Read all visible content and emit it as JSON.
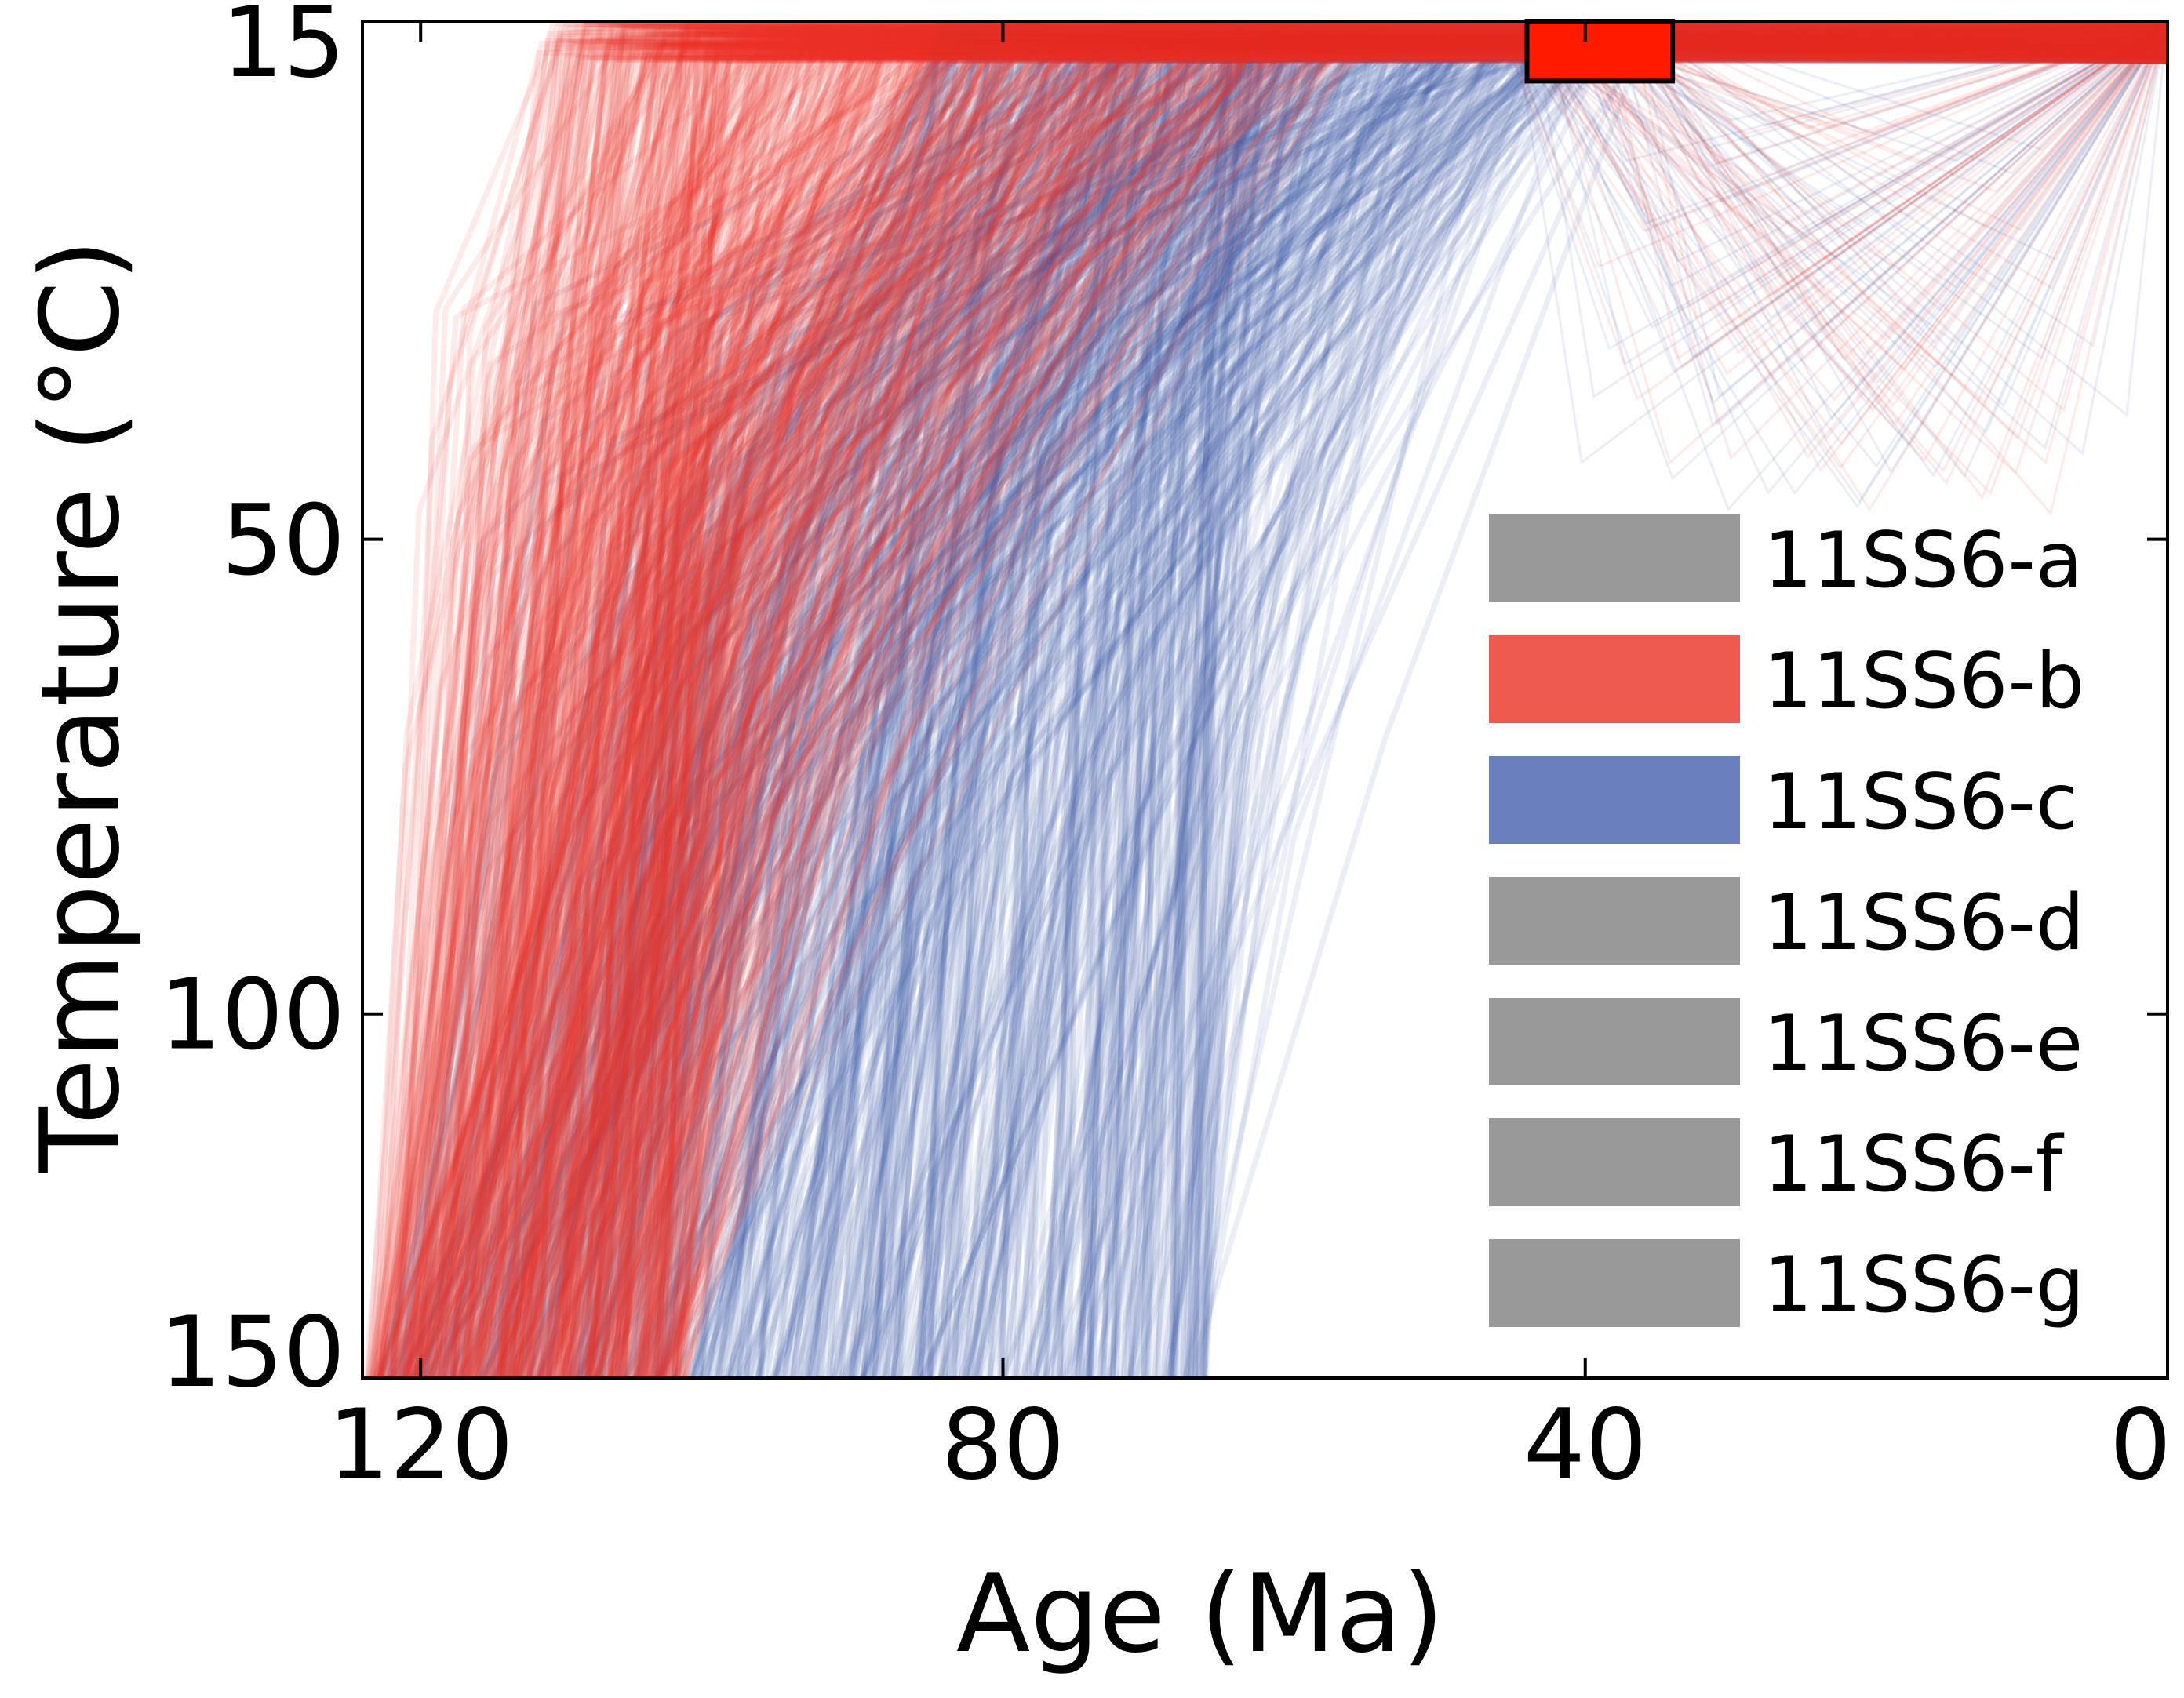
{
  "chart_data": {
    "type": "line",
    "title": "",
    "xlabel": "Age (Ma)",
    "ylabel": "Temperature (°C)",
    "xlim": [
      124,
      0
    ],
    "ylim": [
      15,
      150
    ],
    "x_ticks": [
      120,
      80,
      40,
      0
    ],
    "x_tick_labels": [
      "120",
      "80",
      "40",
      "0"
    ],
    "y_ticks": [
      15,
      50,
      100,
      150
    ],
    "y_tick_labels": [
      "15",
      "50",
      "100",
      "150"
    ],
    "y_scale": "sqrt",
    "grid": false,
    "constraint_box": {
      "age_min": 34,
      "age_max": 44,
      "temp_min": 15,
      "temp_max": 18,
      "color": "#ff1a00"
    },
    "series": [
      {
        "name": "11SS6-a",
        "color": "#999999",
        "paths": 0,
        "start_age_range": [
          0,
          0
        ],
        "reach_surface_age_range": [
          0,
          0
        ]
      },
      {
        "name": "11SS6-b",
        "color": "#e83228",
        "paths": 650,
        "start_age_range": [
          102,
          124
        ],
        "reach_surface_age_range": [
          55,
          112
        ]
      },
      {
        "name": "11SS6-c",
        "color": "#3c55a5",
        "paths": 650,
        "start_age_range": [
          66,
          124
        ],
        "reach_surface_age_range": [
          36,
          85
        ]
      },
      {
        "name": "11SS6-d",
        "color": "#999999",
        "paths": 0,
        "start_age_range": [
          0,
          0
        ],
        "reach_surface_age_range": [
          0,
          0
        ]
      },
      {
        "name": "11SS6-e",
        "color": "#999999",
        "paths": 0,
        "start_age_range": [
          0,
          0
        ],
        "reach_surface_age_range": [
          0,
          0
        ]
      },
      {
        "name": "11SS6-f",
        "color": "#999999",
        "paths": 0,
        "start_age_range": [
          0,
          0
        ],
        "reach_surface_age_range": [
          0,
          0
        ]
      },
      {
        "name": "11SS6-g",
        "color": "#999999",
        "paths": 0,
        "start_age_range": [
          0,
          0
        ],
        "reach_surface_age_range": [
          0,
          0
        ]
      }
    ],
    "legend": {
      "position": "right-center",
      "entries": [
        {
          "label": "11SS6-a",
          "color": "#999999"
        },
        {
          "label": "11SS6-b",
          "color": "#ee5a50"
        },
        {
          "label": "11SS6-c",
          "color": "#6a7fbd"
        },
        {
          "label": "11SS6-d",
          "color": "#999999"
        },
        {
          "label": "11SS6-e",
          "color": "#999999"
        },
        {
          "label": "11SS6-f",
          "color": "#999999"
        },
        {
          "label": "11SS6-g",
          "color": "#999999"
        }
      ]
    }
  }
}
